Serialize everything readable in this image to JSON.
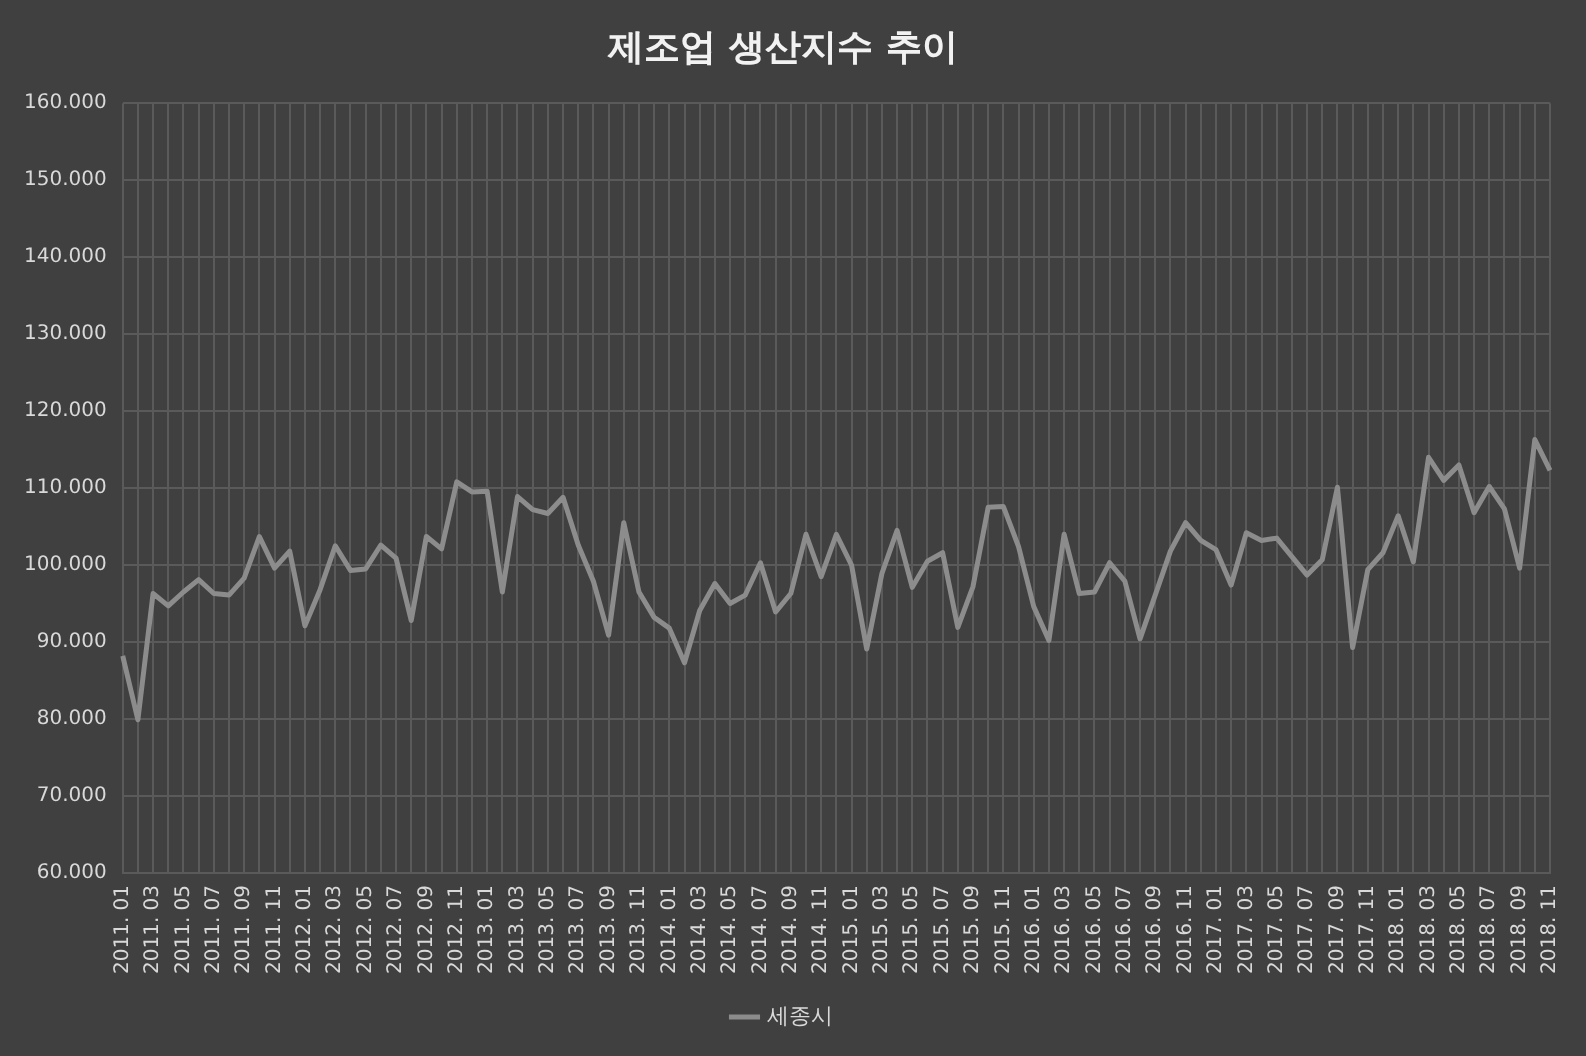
{
  "chart_data": {
    "type": "line",
    "title": "제조업 생산지수 추이",
    "categories": [
      "2011. 01",
      null,
      "2011. 03",
      null,
      "2011. 05",
      null,
      "2011. 07",
      null,
      "2011. 09",
      null,
      "2011. 11",
      null,
      "2012. 01",
      null,
      "2012. 03",
      null,
      "2012. 05",
      null,
      "2012. 07",
      null,
      "2012. 09",
      null,
      "2012. 11",
      null,
      "2013. 01",
      null,
      "2013. 03",
      null,
      "2013. 05",
      null,
      "2013. 07",
      null,
      "2013. 09",
      null,
      "2013. 11",
      null,
      "2014. 01",
      null,
      "2014. 03",
      null,
      "2014. 05",
      null,
      "2014. 07",
      null,
      "2014. 09",
      null,
      "2014. 11",
      null,
      "2015. 01",
      null,
      "2015. 03",
      null,
      "2015. 05",
      null,
      "2015. 07",
      null,
      "2015. 09",
      null,
      "2015. 11",
      null,
      "2016. 01",
      null,
      "2016. 03",
      null,
      "2016. 05",
      null,
      "2016. 07",
      null,
      "2016. 09",
      null,
      "2016. 11",
      null,
      "2017. 01",
      null,
      "2017. 03",
      null,
      "2017. 05",
      null,
      "2017. 07",
      null,
      "2017. 09",
      null,
      "2017. 11",
      null,
      "2018. 01",
      null,
      "2018. 03",
      null,
      "2018. 05",
      null,
      "2018. 07",
      null,
      "2018. 09",
      null,
      "2018. 11"
    ],
    "series": [
      {
        "name": "세종시",
        "color": "#8c8c8c",
        "values": [
          88.2,
          79.9,
          96.3,
          94.7,
          96.5,
          98.1,
          96.3,
          96.1,
          98.3,
          103.7,
          99.6,
          101.8,
          92.1,
          96.8,
          102.5,
          99.3,
          99.5,
          102.6,
          100.9,
          92.8,
          103.7,
          102.1,
          110.8,
          109.5,
          109.6,
          96.5,
          108.9,
          107.2,
          106.7,
          108.8,
          102.6,
          97.9,
          90.9,
          105.5,
          96.5,
          93.2,
          91.8,
          87.3,
          94.1,
          97.6,
          95.0,
          96.1,
          100.3,
          93.9,
          96.3,
          104.0,
          98.5,
          104.0,
          100.0,
          89.1,
          98.9,
          104.5,
          97.1,
          100.5,
          101.6,
          91.9,
          97.2,
          107.5,
          107.6,
          102.4,
          94.6,
          90.2,
          104.0,
          96.3,
          96.5,
          100.3,
          97.9,
          90.4,
          96.1,
          101.8,
          105.5,
          103.2,
          102.0,
          97.4,
          104.2,
          103.2,
          103.5,
          101.1,
          98.7,
          100.7,
          110.1,
          89.3,
          99.4,
          101.6,
          106.4,
          100.4,
          114.0,
          111.0,
          113.0,
          106.8,
          110.2,
          107.3,
          99.6,
          116.3,
          112.3
        ]
      }
    ],
    "ylim": [
      60,
      160
    ],
    "yticks": [
      {
        "value": 60,
        "label": "60.000"
      },
      {
        "value": 70,
        "label": "70.000"
      },
      {
        "value": 80,
        "label": "80.000"
      },
      {
        "value": 90,
        "label": "90.000"
      },
      {
        "value": 100,
        "label": "100.000"
      },
      {
        "value": 110,
        "label": "110.000"
      },
      {
        "value": 120,
        "label": "120.000"
      },
      {
        "value": 130,
        "label": "130.000"
      },
      {
        "value": 140,
        "label": "140.000"
      },
      {
        "value": 150,
        "label": "150.000"
      },
      {
        "value": 160,
        "label": "160.000"
      }
    ],
    "grid": true,
    "legend": "bottom",
    "marker": "none",
    "line_style": "solid"
  }
}
